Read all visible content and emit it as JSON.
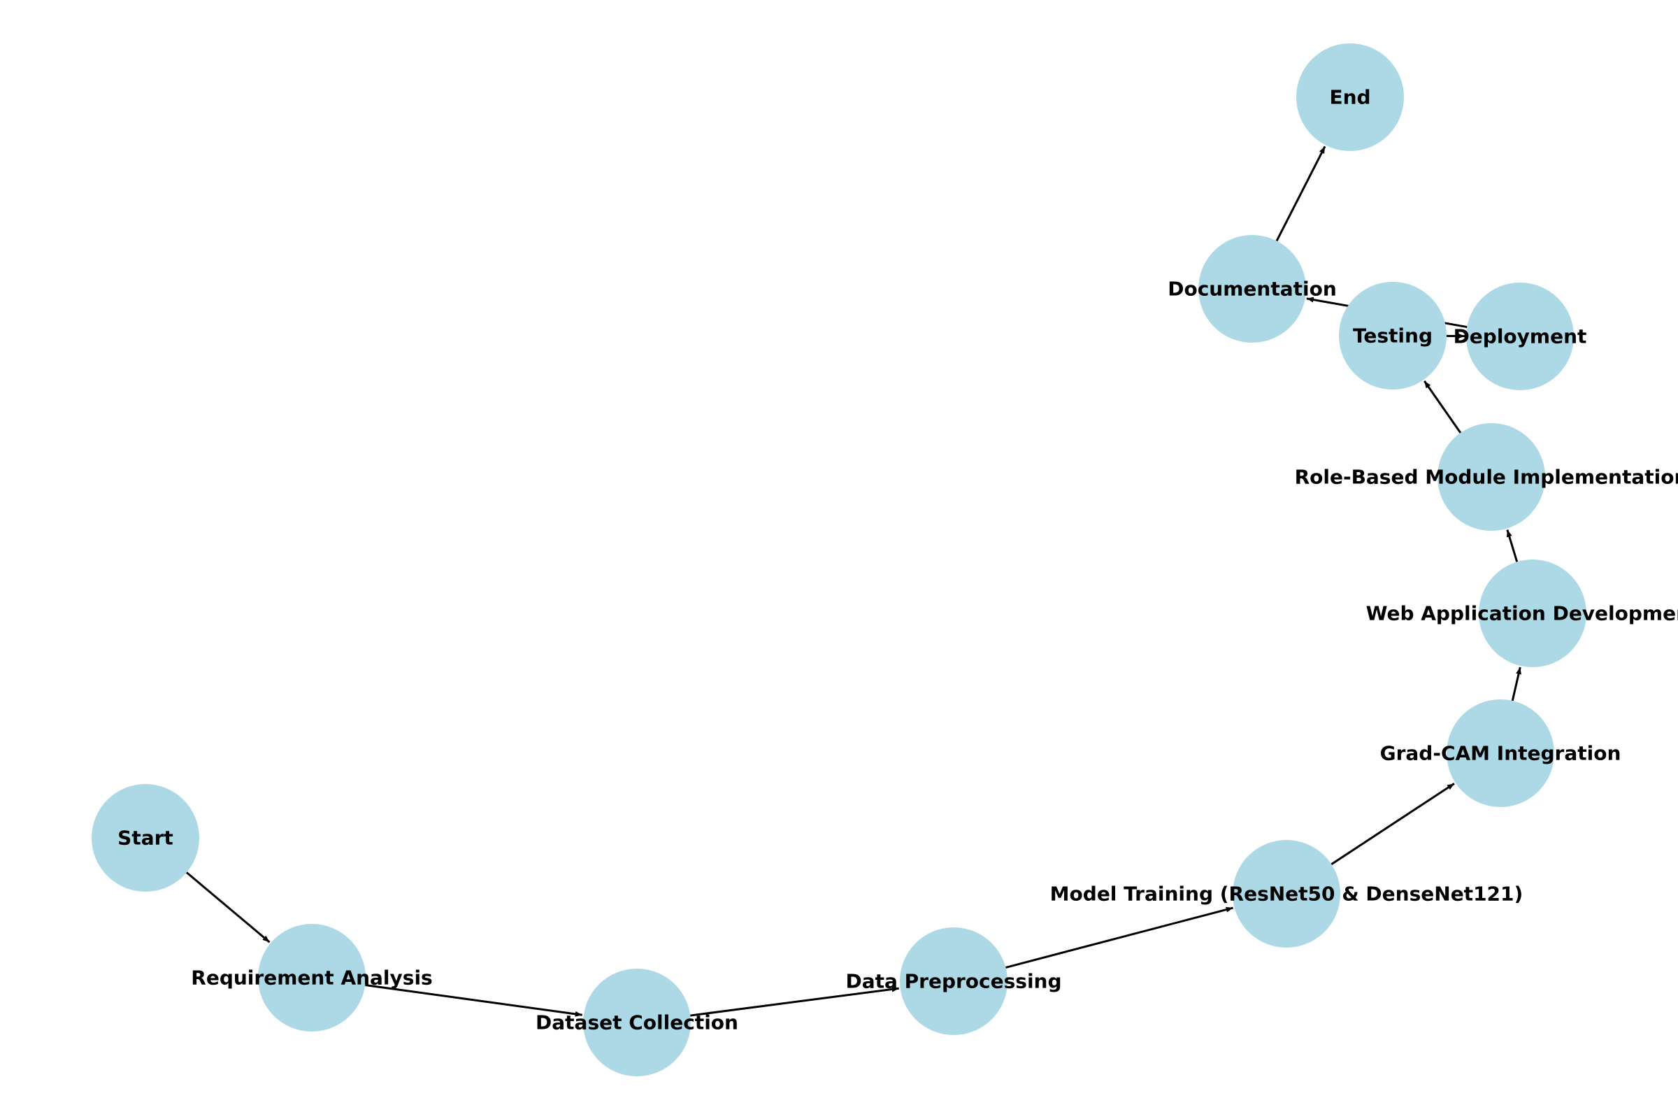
{
  "diagram": {
    "type": "directed-graph",
    "node_color": "#add8e6",
    "edge_color": "#000000",
    "nodes": [
      {
        "id": "start",
        "label": "Start"
      },
      {
        "id": "req",
        "label": "Requirement Analysis"
      },
      {
        "id": "dataset",
        "label": "Dataset Collection"
      },
      {
        "id": "prep",
        "label": "Data Preprocessing"
      },
      {
        "id": "train",
        "label": "Model Training (ResNet50 & DenseNet121)"
      },
      {
        "id": "gradcam",
        "label": "Grad-CAM Integration"
      },
      {
        "id": "webapp",
        "label": "Web Application Development"
      },
      {
        "id": "role",
        "label": "Role-Based Module Implementation"
      },
      {
        "id": "testing",
        "label": "Testing"
      },
      {
        "id": "deploy",
        "label": "Deployment"
      },
      {
        "id": "docs",
        "label": "Documentation"
      },
      {
        "id": "end",
        "label": "End"
      }
    ],
    "edges": [
      {
        "from": "start",
        "to": "req"
      },
      {
        "from": "req",
        "to": "dataset"
      },
      {
        "from": "dataset",
        "to": "prep"
      },
      {
        "from": "prep",
        "to": "train"
      },
      {
        "from": "train",
        "to": "gradcam"
      },
      {
        "from": "gradcam",
        "to": "webapp"
      },
      {
        "from": "webapp",
        "to": "role"
      },
      {
        "from": "role",
        "to": "testing"
      },
      {
        "from": "testing",
        "to": "deploy"
      },
      {
        "from": "deploy",
        "to": "docs"
      },
      {
        "from": "docs",
        "to": "end"
      }
    ]
  }
}
